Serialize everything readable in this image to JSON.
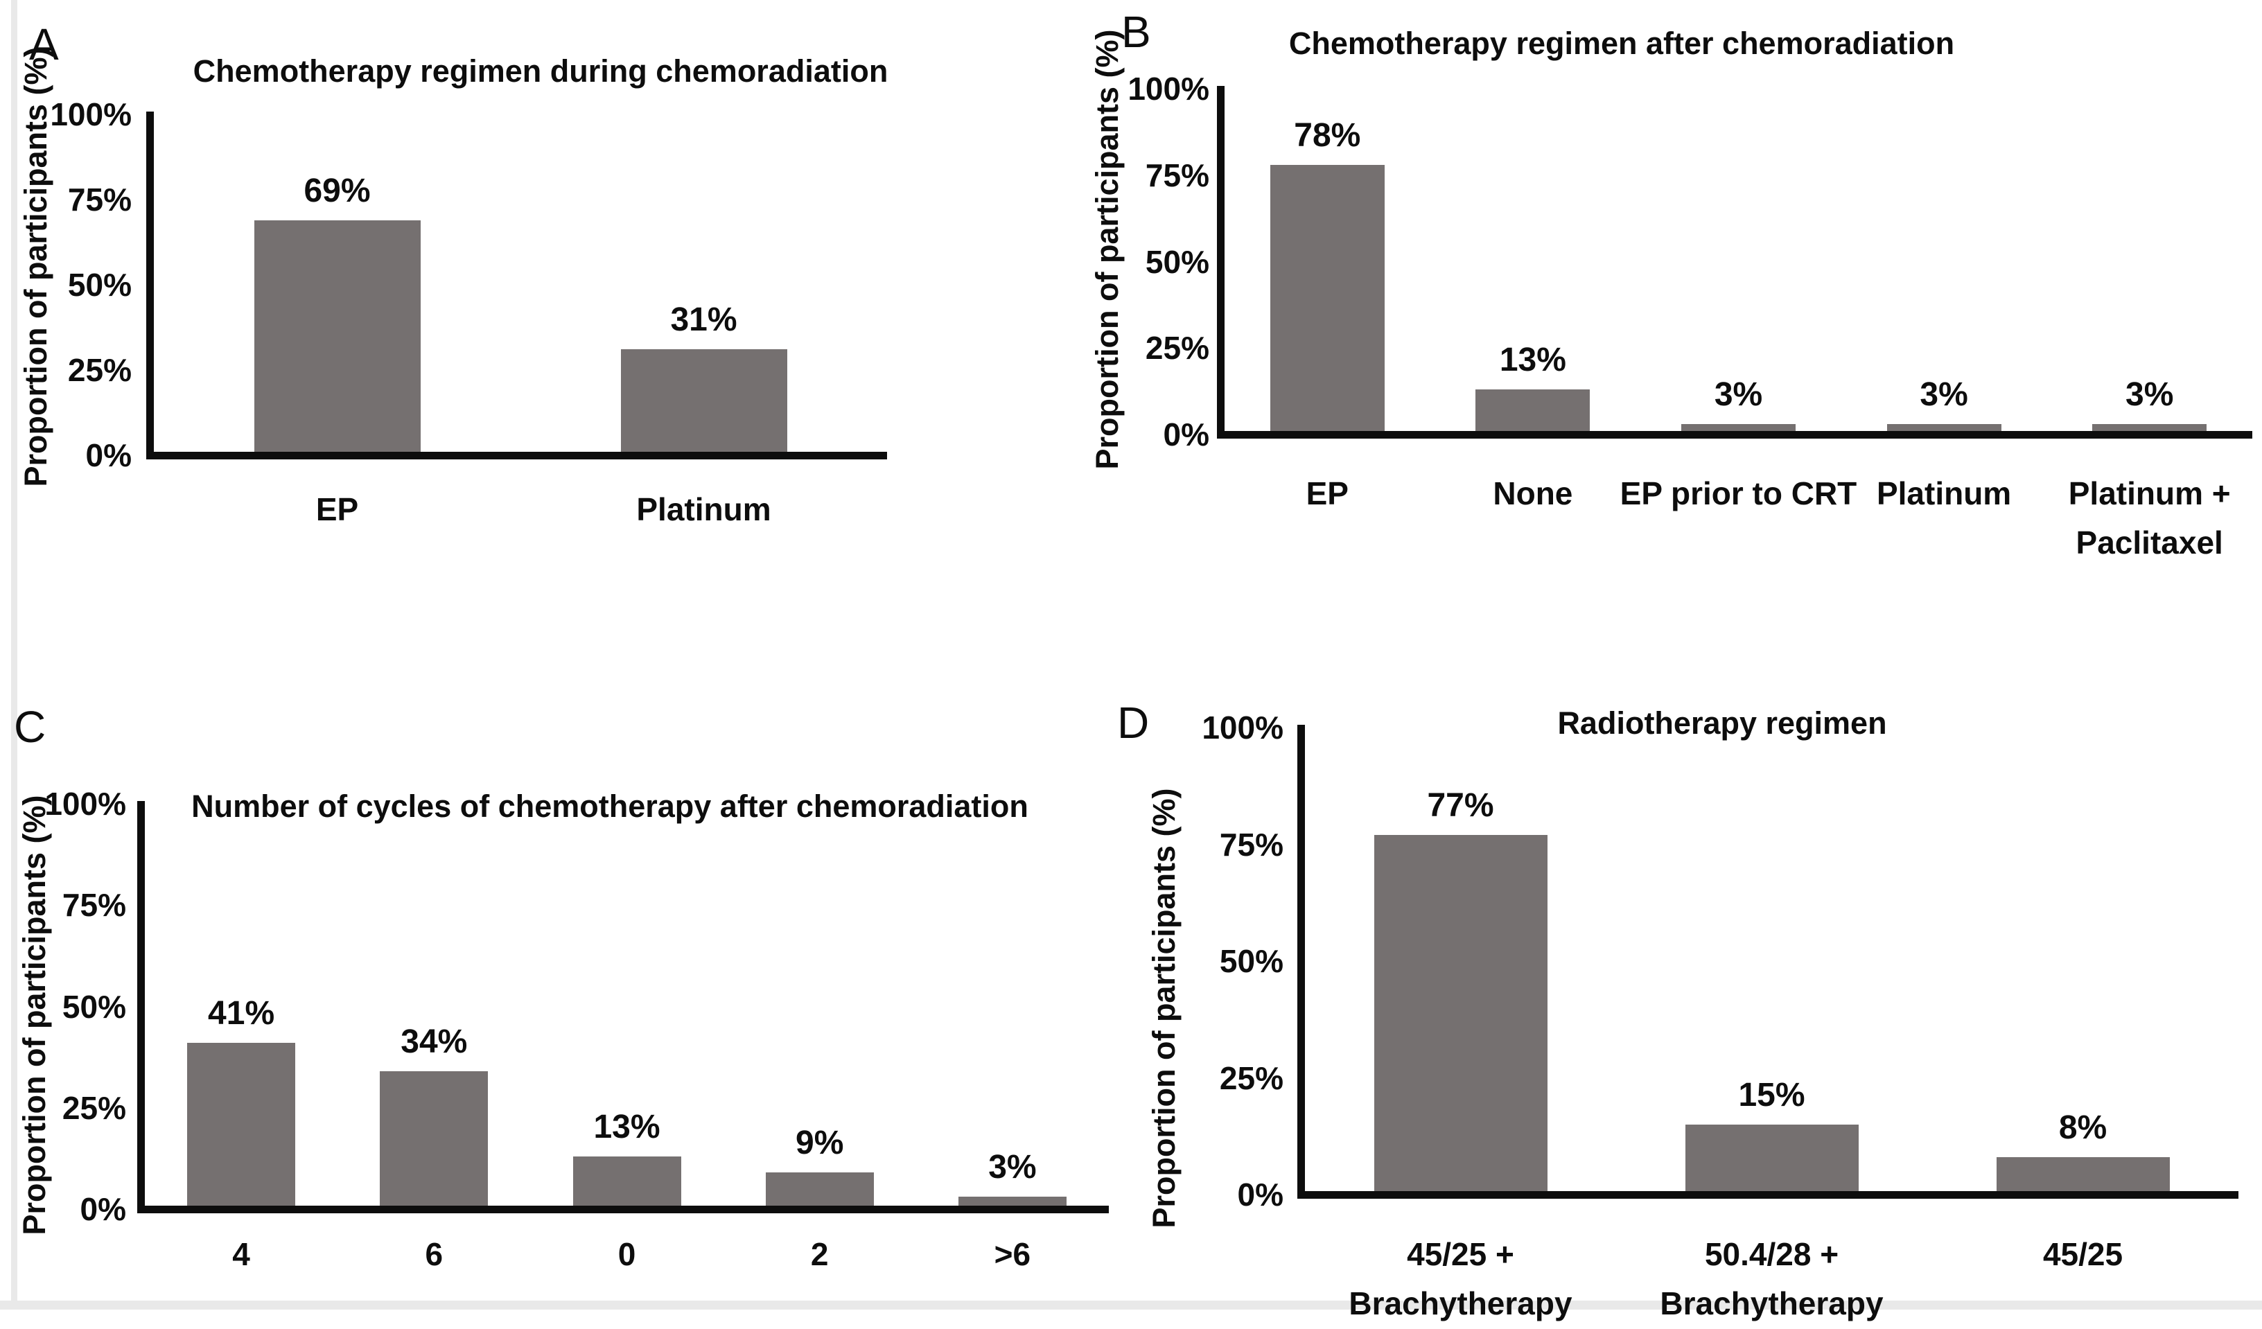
{
  "figure": {
    "background": "#ffffff",
    "text_color": "#0d0d0d",
    "artifact_strip_color": "#e9e9e9"
  },
  "chart_data": [
    {
      "type": "bar",
      "panel": "A",
      "title": "Chemotherapy regimen during chemoradiation",
      "ylabel": "Proportion of participants (%)",
      "xlabel": "",
      "ylim": [
        0,
        100
      ],
      "yticks": [
        "100%",
        "75%",
        "50%",
        "25%",
        "0%"
      ],
      "grid": false,
      "legend": null,
      "bar_color": "#757070",
      "categories": [
        "EP",
        "Platinum"
      ],
      "values": [
        69,
        31
      ],
      "bar_labels": [
        "69%",
        "31%"
      ]
    },
    {
      "type": "bar",
      "panel": "B",
      "title": "Chemotherapy regimen after chemoradiation",
      "ylabel": "Proportion of participants (%)",
      "xlabel": "",
      "ylim": [
        0,
        100
      ],
      "yticks": [
        "100%",
        "75%",
        "50%",
        "25%",
        "0%"
      ],
      "grid": false,
      "legend": null,
      "bar_color": "#757070",
      "categories": [
        "EP",
        "None",
        "EP prior to CRT",
        "Platinum",
        "Platinum +\nPaclitaxel"
      ],
      "values": [
        78,
        13,
        3,
        3,
        3
      ],
      "bar_labels": [
        "78%",
        "13%",
        "3%",
        "3%",
        "3%"
      ]
    },
    {
      "type": "bar",
      "panel": "C",
      "title": "Number of cycles of chemotherapy after chemoradiation",
      "ylabel": "Proportion of participants (%)",
      "xlabel": "",
      "ylim": [
        0,
        100
      ],
      "yticks": [
        "100%",
        "75%",
        "50%",
        "25%",
        "0%"
      ],
      "grid": false,
      "legend": null,
      "bar_color": "#757070",
      "categories": [
        "4",
        "6",
        "0",
        "2",
        ">6"
      ],
      "values": [
        41,
        34,
        13,
        9,
        3
      ],
      "bar_labels": [
        "41%",
        "34%",
        "13%",
        "9%",
        "3%"
      ]
    },
    {
      "type": "bar",
      "panel": "D",
      "title": "Radiotherapy regimen",
      "ylabel": "Proportion of participants (%)",
      "xlabel": "",
      "ylim": [
        0,
        100
      ],
      "yticks": [
        "100%",
        "75%",
        "50%",
        "25%",
        "0%"
      ],
      "grid": false,
      "legend": null,
      "bar_color": "#757070",
      "categories": [
        "45/25 +\nBrachytherapy",
        "50.4/28 +\nBrachytherapy",
        "45/25"
      ],
      "values": [
        77,
        15,
        8
      ],
      "bar_labels": [
        "77%",
        "15%",
        "8%"
      ]
    }
  ]
}
